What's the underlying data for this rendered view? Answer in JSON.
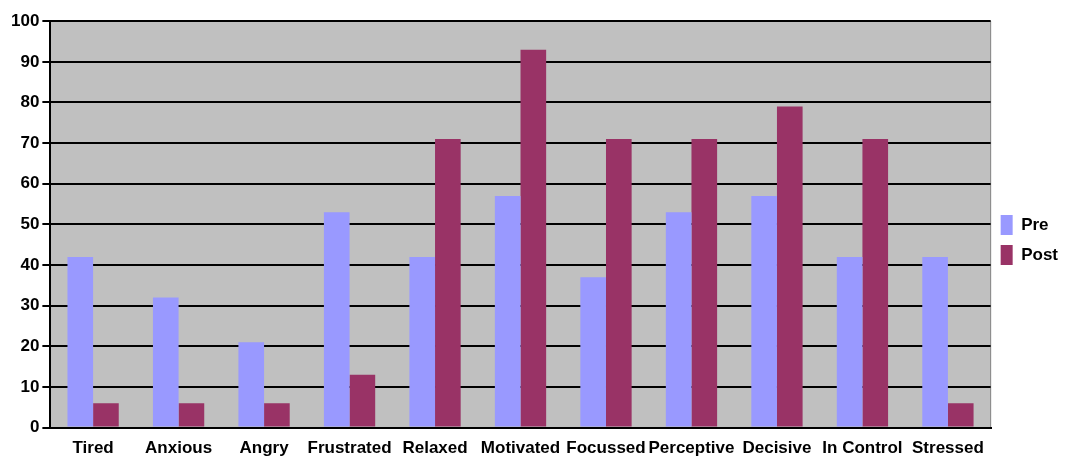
{
  "chart_data": {
    "type": "bar",
    "categories": [
      "Tired",
      "Anxious",
      "Angry",
      "Frustrated",
      "Relaxed",
      "Motivated",
      "Focussed",
      "Perceptive",
      "Decisive",
      "In Control",
      "Stressed"
    ],
    "series": [
      {
        "name": "Pre",
        "color": "#9999ff",
        "values": [
          42,
          32,
          21,
          53,
          42,
          57,
          37,
          53,
          57,
          42,
          42
        ]
      },
      {
        "name": "Post",
        "color": "#993366",
        "values": [
          6,
          6,
          6,
          13,
          71,
          93,
          71,
          71,
          79,
          71,
          6
        ]
      }
    ],
    "ylim": [
      0,
      100
    ],
    "yticks": [
      0,
      10,
      20,
      30,
      40,
      50,
      60,
      70,
      80,
      90,
      100
    ],
    "grid": "y",
    "legend": "right"
  }
}
